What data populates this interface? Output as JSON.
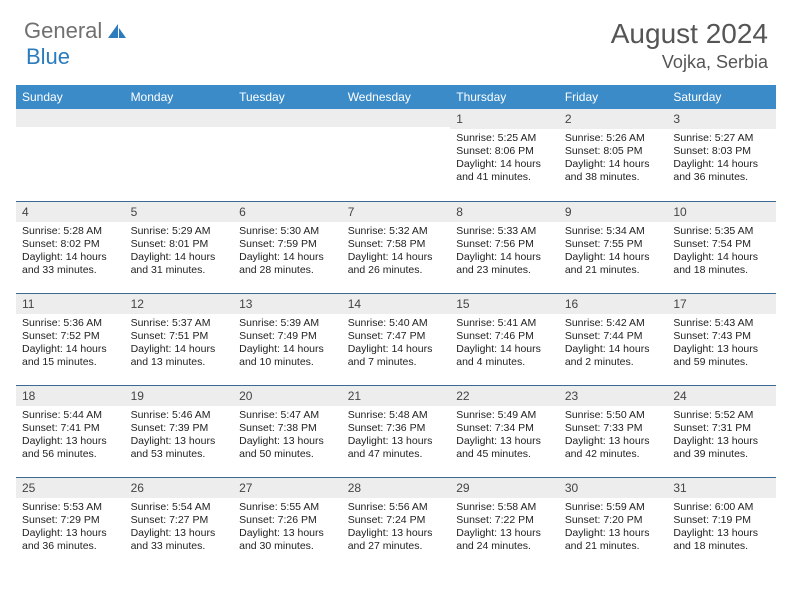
{
  "logo": {
    "general": "General",
    "blue": "Blue"
  },
  "title": {
    "month": "August 2024",
    "location": "Vojka, Serbia"
  },
  "colors": {
    "header_bg": "#3b8bc9",
    "row_divider": "#3b6a93",
    "daynum_bg": "#ededed"
  },
  "dayHeaders": [
    "Sunday",
    "Monday",
    "Tuesday",
    "Wednesday",
    "Thursday",
    "Friday",
    "Saturday"
  ],
  "weeks": [
    [
      {
        "n": "",
        "sr": "",
        "ss": "",
        "dl": ""
      },
      {
        "n": "",
        "sr": "",
        "ss": "",
        "dl": ""
      },
      {
        "n": "",
        "sr": "",
        "ss": "",
        "dl": ""
      },
      {
        "n": "",
        "sr": "",
        "ss": "",
        "dl": ""
      },
      {
        "n": "1",
        "sr": "Sunrise: 5:25 AM",
        "ss": "Sunset: 8:06 PM",
        "dl": "Daylight: 14 hours and 41 minutes."
      },
      {
        "n": "2",
        "sr": "Sunrise: 5:26 AM",
        "ss": "Sunset: 8:05 PM",
        "dl": "Daylight: 14 hours and 38 minutes."
      },
      {
        "n": "3",
        "sr": "Sunrise: 5:27 AM",
        "ss": "Sunset: 8:03 PM",
        "dl": "Daylight: 14 hours and 36 minutes."
      }
    ],
    [
      {
        "n": "4",
        "sr": "Sunrise: 5:28 AM",
        "ss": "Sunset: 8:02 PM",
        "dl": "Daylight: 14 hours and 33 minutes."
      },
      {
        "n": "5",
        "sr": "Sunrise: 5:29 AM",
        "ss": "Sunset: 8:01 PM",
        "dl": "Daylight: 14 hours and 31 minutes."
      },
      {
        "n": "6",
        "sr": "Sunrise: 5:30 AM",
        "ss": "Sunset: 7:59 PM",
        "dl": "Daylight: 14 hours and 28 minutes."
      },
      {
        "n": "7",
        "sr": "Sunrise: 5:32 AM",
        "ss": "Sunset: 7:58 PM",
        "dl": "Daylight: 14 hours and 26 minutes."
      },
      {
        "n": "8",
        "sr": "Sunrise: 5:33 AM",
        "ss": "Sunset: 7:56 PM",
        "dl": "Daylight: 14 hours and 23 minutes."
      },
      {
        "n": "9",
        "sr": "Sunrise: 5:34 AM",
        "ss": "Sunset: 7:55 PM",
        "dl": "Daylight: 14 hours and 21 minutes."
      },
      {
        "n": "10",
        "sr": "Sunrise: 5:35 AM",
        "ss": "Sunset: 7:54 PM",
        "dl": "Daylight: 14 hours and 18 minutes."
      }
    ],
    [
      {
        "n": "11",
        "sr": "Sunrise: 5:36 AM",
        "ss": "Sunset: 7:52 PM",
        "dl": "Daylight: 14 hours and 15 minutes."
      },
      {
        "n": "12",
        "sr": "Sunrise: 5:37 AM",
        "ss": "Sunset: 7:51 PM",
        "dl": "Daylight: 14 hours and 13 minutes."
      },
      {
        "n": "13",
        "sr": "Sunrise: 5:39 AM",
        "ss": "Sunset: 7:49 PM",
        "dl": "Daylight: 14 hours and 10 minutes."
      },
      {
        "n": "14",
        "sr": "Sunrise: 5:40 AM",
        "ss": "Sunset: 7:47 PM",
        "dl": "Daylight: 14 hours and 7 minutes."
      },
      {
        "n": "15",
        "sr": "Sunrise: 5:41 AM",
        "ss": "Sunset: 7:46 PM",
        "dl": "Daylight: 14 hours and 4 minutes."
      },
      {
        "n": "16",
        "sr": "Sunrise: 5:42 AM",
        "ss": "Sunset: 7:44 PM",
        "dl": "Daylight: 14 hours and 2 minutes."
      },
      {
        "n": "17",
        "sr": "Sunrise: 5:43 AM",
        "ss": "Sunset: 7:43 PM",
        "dl": "Daylight: 13 hours and 59 minutes."
      }
    ],
    [
      {
        "n": "18",
        "sr": "Sunrise: 5:44 AM",
        "ss": "Sunset: 7:41 PM",
        "dl": "Daylight: 13 hours and 56 minutes."
      },
      {
        "n": "19",
        "sr": "Sunrise: 5:46 AM",
        "ss": "Sunset: 7:39 PM",
        "dl": "Daylight: 13 hours and 53 minutes."
      },
      {
        "n": "20",
        "sr": "Sunrise: 5:47 AM",
        "ss": "Sunset: 7:38 PM",
        "dl": "Daylight: 13 hours and 50 minutes."
      },
      {
        "n": "21",
        "sr": "Sunrise: 5:48 AM",
        "ss": "Sunset: 7:36 PM",
        "dl": "Daylight: 13 hours and 47 minutes."
      },
      {
        "n": "22",
        "sr": "Sunrise: 5:49 AM",
        "ss": "Sunset: 7:34 PM",
        "dl": "Daylight: 13 hours and 45 minutes."
      },
      {
        "n": "23",
        "sr": "Sunrise: 5:50 AM",
        "ss": "Sunset: 7:33 PM",
        "dl": "Daylight: 13 hours and 42 minutes."
      },
      {
        "n": "24",
        "sr": "Sunrise: 5:52 AM",
        "ss": "Sunset: 7:31 PM",
        "dl": "Daylight: 13 hours and 39 minutes."
      }
    ],
    [
      {
        "n": "25",
        "sr": "Sunrise: 5:53 AM",
        "ss": "Sunset: 7:29 PM",
        "dl": "Daylight: 13 hours and 36 minutes."
      },
      {
        "n": "26",
        "sr": "Sunrise: 5:54 AM",
        "ss": "Sunset: 7:27 PM",
        "dl": "Daylight: 13 hours and 33 minutes."
      },
      {
        "n": "27",
        "sr": "Sunrise: 5:55 AM",
        "ss": "Sunset: 7:26 PM",
        "dl": "Daylight: 13 hours and 30 minutes."
      },
      {
        "n": "28",
        "sr": "Sunrise: 5:56 AM",
        "ss": "Sunset: 7:24 PM",
        "dl": "Daylight: 13 hours and 27 minutes."
      },
      {
        "n": "29",
        "sr": "Sunrise: 5:58 AM",
        "ss": "Sunset: 7:22 PM",
        "dl": "Daylight: 13 hours and 24 minutes."
      },
      {
        "n": "30",
        "sr": "Sunrise: 5:59 AM",
        "ss": "Sunset: 7:20 PM",
        "dl": "Daylight: 13 hours and 21 minutes."
      },
      {
        "n": "31",
        "sr": "Sunrise: 6:00 AM",
        "ss": "Sunset: 7:19 PM",
        "dl": "Daylight: 13 hours and 18 minutes."
      }
    ]
  ]
}
